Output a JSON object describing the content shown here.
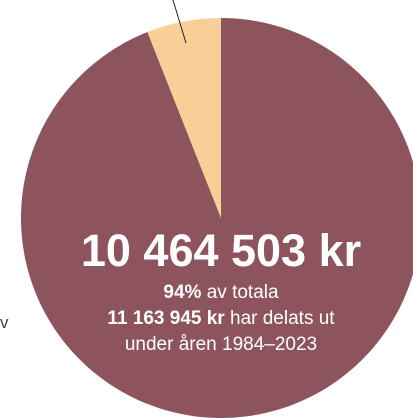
{
  "chart_data": {
    "type": "pie",
    "values": [
      94,
      6
    ],
    "value_labels": [
      "94%",
      null
    ],
    "colors": [
      "#8e545d",
      "#f9cf98"
    ],
    "amount": "10 464 503 kr",
    "share_text": "av totala",
    "total": "11 163 945 kr",
    "total_text": "har delats ut",
    "period_text": "under åren 1984–2023",
    "annotations": [
      "v"
    ]
  }
}
